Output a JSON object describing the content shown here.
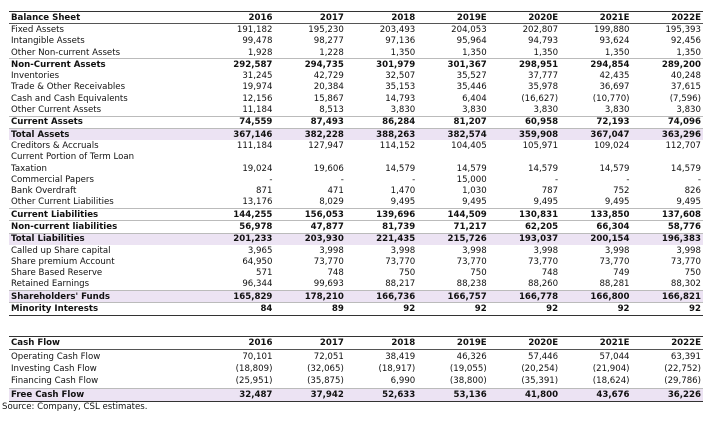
{
  "balance_sheet": {
    "header": [
      "Balance Sheet",
      "2016",
      "2017",
      "2018",
      "2019E",
      "2020E",
      "2021E",
      "2022E"
    ],
    "rows": [
      [
        "Fixed Assets",
        "191,182",
        "195,230",
        "203,493",
        "204,053",
        "202,807",
        "199,880",
        "195,393"
      ],
      [
        "Intangible Assets",
        "99,478",
        "98,277",
        "97,136",
        "95,964",
        "94,793",
        "93,624",
        "92,456"
      ],
      [
        "Other Non-current Assets",
        "1,928",
        "1,228",
        "1,350",
        "1,350",
        "1,350",
        "1,350",
        "1,350"
      ],
      [
        "Non-Current Assets",
        "292,587",
        "294,735",
        "301,979",
        "301,367",
        "298,951",
        "294,854",
        "289,200"
      ],
      [
        "Inventories",
        "31,245",
        "42,729",
        "32,507",
        "35,527",
        "37,777",
        "42,435",
        "40,248"
      ],
      [
        "Trade & Other Receivables",
        "19,974",
        "20,384",
        "35,153",
        "35,446",
        "35,978",
        "36,697",
        "37,615"
      ],
      [
        "Cash and Cash Equivalents",
        "12,156",
        "15,867",
        "14,793",
        "6,404",
        "(16,627)",
        "(10,770)",
        "(7,596)"
      ],
      [
        "Other Current Assets",
        "11,184",
        "8,513",
        "3,830",
        "3,830",
        "3,830",
        "3,830",
        "3,830"
      ],
      [
        "Current Assets",
        "74,559",
        "87,493",
        "86,284",
        "81,207",
        "60,958",
        "72,193",
        "74,096"
      ],
      [
        "Total Assets",
        "367,146",
        "382,228",
        "388,263",
        "382,574",
        "359,908",
        "367,047",
        "363,296"
      ],
      [
        "Creditors & Accruals",
        "111,184",
        "127,947",
        "114,152",
        "104,405",
        "105,971",
        "109,024",
        "112,707"
      ],
      [
        "Current Portion of Term Loan",
        null,
        null,
        null,
        null,
        null,
        null,
        null
      ],
      [
        "Taxation",
        "19,024",
        "19,606",
        "14,579",
        "14,579",
        "14,579",
        "14,579",
        "14,579"
      ],
      [
        "Commercial Papers",
        "-",
        "-",
        "-",
        "15,000",
        "-",
        "-",
        "-"
      ],
      [
        "Bank Overdraft",
        "871",
        "471",
        "1,470",
        "1,030",
        "787",
        "752",
        "826"
      ],
      [
        "Other Current Liabilities",
        "13,176",
        "8,029",
        "9,495",
        "9,495",
        "9,495",
        "9,495",
        "9,495"
      ],
      [
        "Current Liabilities",
        "144,255",
        "156,053",
        "139,696",
        "144,509",
        "130,831",
        "133,850",
        "137,608"
      ],
      [
        "Non-current liabilities",
        "56,978",
        "47,877",
        "81,739",
        "71,217",
        "62,205",
        "66,304",
        "58,776"
      ],
      [
        "Total Liabilities",
        "201,233",
        "203,930",
        "221,435",
        "215,726",
        "193,037",
        "200,154",
        "196,383"
      ],
      [
        "Called up Share capital",
        "3,965",
        "3,998",
        "3,998",
        "3,998",
        "3,998",
        "3,998",
        "3,998"
      ],
      [
        "Share premium Account",
        "64,950",
        "73,770",
        "73,770",
        "73,770",
        "73,770",
        "73,770",
        "73,770"
      ],
      [
        "Share Based Reserve",
        "571",
        "748",
        "750",
        "750",
        "748",
        "749",
        "750"
      ],
      [
        "Retained Earnings",
        "96,344",
        "99,693",
        "88,217",
        "88,238",
        "88,260",
        "88,281",
        "88,302"
      ],
      [
        "Shareholders' Funds",
        "165,829",
        "178,210",
        "166,736",
        "166,757",
        "166,778",
        "166,800",
        "166,821"
      ],
      [
        "Minority Interests",
        "84",
        "89",
        "92",
        "92",
        "92",
        "92",
        "92"
      ]
    ]
  },
  "cash_flow": {
    "header": [
      "Cash Flow",
      "2016",
      "2017",
      "2018",
      "2019E",
      "2020E",
      "2021E",
      "2022E"
    ],
    "rows": [
      [
        "Operating Cash Flow",
        "70,101",
        "72,051",
        "38,419",
        "46,326",
        "57,446",
        "57,044",
        "63,391"
      ],
      [
        "Investing Cash Flow",
        "(18,809)",
        "(32,065)",
        "(18,917)",
        "(19,055)",
        "(20,254)",
        "(21,904)",
        "(22,752)"
      ],
      [
        "Financing Cash Flow",
        "(25,951)",
        "(35,875)",
        "6,990",
        "(38,800)",
        "(35,391)",
        "(18,624)",
        "(29,786)"
      ],
      [
        "Free Cash Flow",
        "32,487",
        "37,942",
        "52,633",
        "53,136",
        "41,800",
        "43,676",
        "36,226"
      ]
    ]
  },
  "source": "Source: Company, CSL estimates."
}
